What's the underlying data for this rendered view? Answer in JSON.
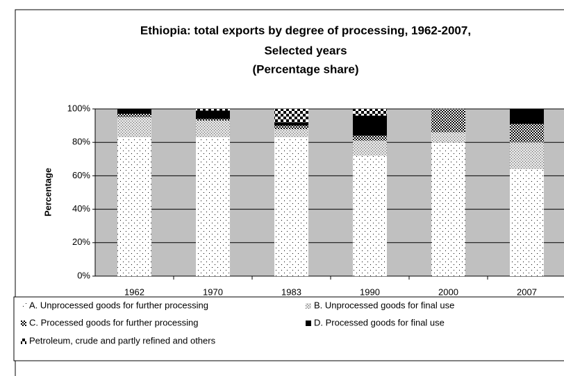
{
  "chart_data": {
    "type": "stacked_bar",
    "title": [
      "Ethiopia: total exports by degree of processing, 1962-2007,",
      "Selected years",
      "(Percentage share)"
    ],
    "y_label": "Percentage",
    "categories": [
      "1962",
      "1970",
      "1983",
      "1990",
      "2000",
      "2007"
    ],
    "series": [
      {
        "name": "A. Unprocessed goods for further processing",
        "color": "#ffffff",
        "values": [
          83,
          83,
          83,
          72,
          80,
          64
        ]
      },
      {
        "name": "B. Unprocessed goods for final use",
        "color": "#e0e0e0",
        "values": [
          12,
          10,
          5,
          9,
          6,
          16
        ]
      },
      {
        "name": "C. Processed goods for further processing",
        "color": "#ffffff",
        "values": [
          2,
          1,
          2,
          3,
          14,
          11
        ]
      },
      {
        "name": "D. Processed goods for final use",
        "color": "#000000",
        "values": [
          3,
          5,
          2,
          12,
          0,
          9
        ]
      },
      {
        "name": "Petroleum, crude and partly refined and others",
        "color": "#ffffff",
        "values": [
          0,
          1,
          8,
          4,
          0,
          0
        ]
      }
    ],
    "ylim": [
      0,
      100
    ],
    "yticks": [
      {
        "value": 0,
        "label": "0%"
      },
      {
        "value": 20,
        "label": "20%"
      },
      {
        "value": 40,
        "label": "40%"
      },
      {
        "value": 60,
        "label": "60%"
      },
      {
        "value": 80,
        "label": "80%"
      },
      {
        "value": 100,
        "label": "100%"
      }
    ],
    "grid": true
  }
}
